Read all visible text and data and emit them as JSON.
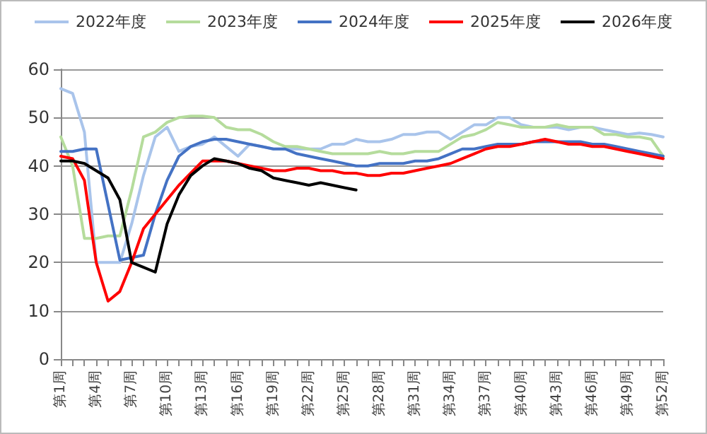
{
  "chart_data": {
    "type": "line",
    "categories": [
      "第1周",
      null,
      null,
      "第4周",
      null,
      null,
      "第7周",
      null,
      null,
      "第10周",
      null,
      null,
      "第13周",
      null,
      null,
      "第16周",
      null,
      null,
      "第19周",
      null,
      null,
      "第22周",
      null,
      null,
      "第25周",
      null,
      null,
      "第28周",
      null,
      null,
      "第31周",
      null,
      null,
      "第34周",
      null,
      null,
      "第37周",
      null,
      null,
      "第40周",
      null,
      null,
      "第43周",
      null,
      null,
      "第46周",
      null,
      null,
      "第49周",
      null,
      null,
      "第52周"
    ],
    "series": [
      {
        "name": "2022年度",
        "color": "#a9c4eb",
        "values": [
          56,
          55,
          47,
          20,
          20,
          20,
          28,
          38,
          46,
          48,
          43,
          44,
          44.5,
          46,
          44,
          42,
          44.5,
          44,
          43.5,
          43.5,
          43.5,
          43.5,
          43.5,
          44.5,
          44.5,
          45.5,
          45,
          45,
          45.5,
          46.5,
          46.5,
          47,
          47,
          45.5,
          47,
          48.5,
          48.5,
          50,
          50,
          48.5,
          48,
          48,
          48,
          47.5,
          48,
          48,
          47.5,
          47,
          46.5,
          46.8,
          46.5,
          46
        ]
      },
      {
        "name": "2023年度",
        "color": "#b5dc9c",
        "values": [
          46,
          40,
          25,
          25,
          25.5,
          25.5,
          35,
          46,
          47,
          49,
          50,
          50.3,
          50.3,
          50,
          48,
          47.5,
          47.5,
          46.5,
          45,
          44,
          44,
          43.5,
          43,
          42.5,
          42.5,
          42.5,
          42.5,
          43,
          42.5,
          42.5,
          43,
          43,
          43,
          44.5,
          46,
          46.5,
          47.5,
          49,
          48.5,
          48,
          48,
          48,
          48.5,
          48,
          48,
          48,
          46.5,
          46.5,
          46,
          46,
          45.5,
          42
        ]
      },
      {
        "name": "2024年度",
        "color": "#4472c4",
        "values": [
          43,
          43,
          43.5,
          43.5,
          32,
          20.5,
          21,
          21.5,
          30,
          37,
          42,
          44,
          45,
          45.5,
          45.5,
          45,
          44.5,
          44,
          43.5,
          43.5,
          42.5,
          42,
          41.5,
          41,
          40.5,
          40,
          40,
          40.5,
          40.5,
          40.5,
          41,
          41,
          41.5,
          42.5,
          43.5,
          43.5,
          44,
          44.5,
          44.5,
          44.5,
          45,
          45,
          45,
          45,
          45,
          44.5,
          44.5,
          44,
          43.5,
          43,
          42.5,
          42
        ]
      },
      {
        "name": "2025年度",
        "color": "#ff0000",
        "values": [
          42,
          41.5,
          37,
          20,
          12,
          14,
          20,
          27,
          30,
          33,
          36,
          38.5,
          41,
          41,
          41,
          40.5,
          40,
          39.5,
          39,
          39,
          39.5,
          39.5,
          39,
          39,
          38.5,
          38.5,
          38,
          38,
          38.5,
          38.5,
          39,
          39.5,
          40,
          40.5,
          41.5,
          42.5,
          43.5,
          44,
          44,
          44.5,
          45,
          45.5,
          45,
          44.5,
          44.5,
          44,
          44,
          43.5,
          43,
          42.5,
          42,
          41.5
        ]
      },
      {
        "name": "2026年度",
        "color": "#000000",
        "values": [
          41,
          41,
          40.5,
          39,
          37.5,
          33,
          20,
          19,
          18,
          28,
          34,
          38,
          40,
          41.5,
          41,
          40.5,
          39.5,
          39,
          37.5,
          37,
          36.5,
          36,
          36.5,
          36,
          35.5,
          35,
          null,
          null,
          null,
          null,
          null,
          null,
          null,
          null,
          null,
          null,
          null,
          null,
          null,
          null,
          null,
          null,
          null,
          null,
          null,
          null,
          null,
          null,
          null,
          null,
          null,
          null
        ]
      }
    ],
    "ylim": [
      0,
      60
    ],
    "yticks": [
      0,
      10,
      20,
      30,
      40,
      50,
      60
    ],
    "grid": "y",
    "legend": "top",
    "marker": "none",
    "line_style": "solid"
  }
}
